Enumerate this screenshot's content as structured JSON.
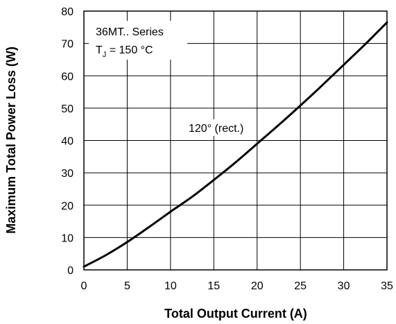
{
  "chart_data": {
    "type": "line",
    "title": "",
    "xlabel": "Total Output Current (A)",
    "ylabel": "Maximum Total Power Loss (W)",
    "xlim": [
      0,
      35
    ],
    "ylim": [
      0,
      80
    ],
    "xticks": [
      "0",
      "5",
      "10",
      "15",
      "20",
      "25",
      "30",
      "35"
    ],
    "yticks": [
      "0",
      "10",
      "20",
      "30",
      "40",
      "50",
      "60",
      "70",
      "80"
    ],
    "grid": true,
    "legend": "none",
    "series": [
      {
        "name": "120° (rect.)",
        "x": [
          0,
          2.5,
          5,
          7.5,
          10,
          12.5,
          15,
          17.5,
          20,
          22.5,
          25,
          27.5,
          30,
          32.5,
          35
        ],
        "y": [
          1,
          4.5,
          8.6,
          13.2,
          18,
          22.6,
          27.8,
          33.2,
          39,
          44.8,
          50.8,
          57,
          63.4,
          69.8,
          76.5
        ]
      }
    ],
    "annotations": [
      {
        "id": "series-name",
        "text": "36MT.. Series"
      },
      {
        "id": "tj-prefix",
        "text": "T"
      },
      {
        "id": "tj-subscript",
        "text": "J"
      },
      {
        "id": "tj-value",
        "text": " = 150 °C"
      },
      {
        "id": "curve-label",
        "text": "120° (rect.)"
      }
    ]
  }
}
